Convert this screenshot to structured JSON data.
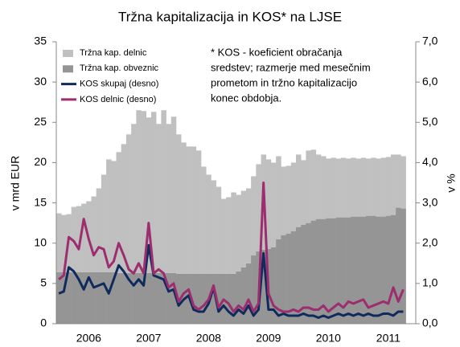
{
  "chart_data": {
    "type": "bar-line",
    "title": "Tržna kapitalizacija in KOS* na LJSE",
    "y_label": "v mrd EUR",
    "y2_label": "v %",
    "annotation": [
      "* KOS - koeficient obračanja",
      "sredstev; razmerje med mesečnim",
      "prometom in tržno kapitalizacijo",
      "konec obdobja."
    ],
    "categories": [
      null,
      null,
      null,
      null,
      null,
      null,
      "2006",
      null,
      null,
      null,
      null,
      null,
      null,
      null,
      null,
      null,
      null,
      null,
      "2007",
      null,
      null,
      null,
      null,
      null,
      null,
      null,
      null,
      null,
      null,
      null,
      "2008",
      null,
      null,
      null,
      null,
      null,
      null,
      null,
      null,
      null,
      null,
      null,
      "2009",
      null,
      null,
      null,
      null,
      null,
      null,
      null,
      null,
      null,
      null,
      null,
      "2010",
      null,
      null,
      null,
      null,
      null,
      null,
      null,
      null,
      null,
      null,
      null,
      "2011",
      null,
      null,
      null,
      null,
      null
    ],
    "series": [
      {
        "name": "Tržna kap. delnic",
        "kind": "bar",
        "color": "#c0c0c0",
        "values": [
          7.3,
          7.1,
          7.2,
          8.1,
          8.2,
          8.5,
          8.8,
          9.4,
          10.4,
          12.1,
          14.0,
          13.8,
          15.0,
          16.0,
          17.2,
          18.5,
          20.2,
          20.1,
          19.3,
          20.0,
          18.5,
          20.2,
          18.5,
          19.4,
          17.3,
          16.3,
          15.8,
          15.8,
          15.3,
          13.3,
          12.3,
          11.6,
          10.8,
          9.3,
          9.5,
          10.1,
          9.5,
          9.5,
          9.3,
          9.8,
          10.8,
          11.8,
          11.1,
          10.5,
          10.3,
          8.5,
          8.4,
          8.5,
          9.0,
          8.0,
          9.0,
          8.8,
          8.0,
          7.8,
          7.4,
          7.5,
          7.3,
          7.4,
          7.3,
          7.3,
          7.2,
          7.3,
          7.1,
          7.2,
          7.2,
          7.3,
          7.3,
          7.5,
          6.6,
          6.5,
          null,
          null
        ]
      },
      {
        "name": "Tržna kap. obveznic",
        "kind": "bar",
        "color": "#959595",
        "values": [
          6.4,
          6.4,
          6.4,
          6.4,
          6.4,
          6.4,
          6.4,
          6.4,
          6.4,
          6.4,
          6.4,
          6.4,
          6.3,
          6.3,
          6.3,
          6.3,
          6.3,
          6.3,
          6.3,
          6.3,
          6.3,
          6.3,
          6.3,
          6.3,
          6.2,
          6.2,
          6.2,
          6.2,
          6.2,
          6.2,
          6.2,
          6.2,
          6.2,
          6.2,
          6.2,
          6.2,
          6.5,
          7.0,
          7.5,
          8.5,
          9.0,
          9.2,
          9.3,
          9.5,
          10.5,
          11.0,
          11.2,
          11.5,
          12.0,
          12.3,
          12.5,
          12.8,
          13.0,
          13.0,
          13.1,
          13.1,
          13.2,
          13.2,
          13.2,
          13.3,
          13.3,
          13.3,
          13.4,
          13.4,
          13.3,
          13.3,
          13.4,
          13.5,
          14.4,
          14.3,
          null,
          null
        ]
      },
      {
        "name": "KOS skupaj (desno)",
        "kind": "line",
        "axis": "y2",
        "color": "#0f2a5c",
        "values": [
          0.75,
          0.8,
          1.4,
          1.3,
          1.1,
          0.85,
          1.15,
          0.9,
          0.95,
          1.0,
          0.75,
          1.1,
          1.45,
          1.3,
          1.1,
          0.95,
          1.1,
          0.95,
          1.95,
          1.2,
          1.15,
          1.1,
          0.8,
          0.85,
          0.45,
          0.6,
          0.7,
          0.35,
          0.3,
          0.3,
          0.5,
          0.9,
          0.3,
          0.45,
          0.3,
          0.2,
          0.35,
          0.25,
          0.45,
          0.2,
          0.35,
          1.75,
          0.35,
          0.35,
          0.2,
          0.25,
          0.2,
          0.2,
          0.2,
          0.25,
          0.2,
          0.2,
          0.15,
          0.2,
          0.15,
          0.2,
          0.25,
          0.2,
          0.25,
          0.2,
          0.25,
          0.2,
          0.25,
          0.2,
          0.2,
          0.25,
          0.25,
          0.2,
          0.3,
          0.3,
          null,
          null
        ]
      },
      {
        "name": "KOS delnic (desno)",
        "kind": "line",
        "axis": "y2",
        "color": "#9c2d6e",
        "values": [
          1.1,
          1.2,
          2.15,
          2.05,
          1.85,
          2.6,
          2.1,
          1.7,
          1.9,
          1.85,
          1.4,
          1.55,
          2.0,
          1.7,
          1.35,
          1.25,
          1.5,
          1.25,
          2.5,
          1.25,
          1.35,
          1.25,
          0.9,
          1.0,
          0.55,
          0.75,
          0.85,
          0.45,
          0.35,
          0.45,
          0.6,
          0.95,
          0.4,
          0.6,
          0.5,
          0.3,
          0.45,
          0.35,
          0.6,
          0.3,
          0.5,
          3.5,
          0.75,
          0.45,
          0.35,
          0.3,
          0.3,
          0.35,
          0.3,
          0.4,
          0.4,
          0.35,
          0.35,
          0.45,
          0.3,
          0.4,
          0.5,
          0.4,
          0.55,
          0.5,
          0.55,
          0.6,
          0.4,
          0.45,
          0.5,
          0.55,
          0.5,
          0.9,
          0.55,
          0.85,
          null,
          null
        ]
      }
    ],
    "ylim": [
      0,
      35
    ],
    "yticks": [
      0,
      5,
      10,
      15,
      20,
      25,
      30,
      35
    ],
    "y2lim": [
      0,
      7
    ],
    "y2ticks": [
      {
        "value": 0,
        "label": "0,0"
      },
      {
        "value": 1,
        "label": "1,0"
      },
      {
        "value": 2,
        "label": "2,0"
      },
      {
        "value": 3,
        "label": "3,0"
      },
      {
        "value": 4,
        "label": "4,0"
      },
      {
        "value": 5,
        "label": "5,0"
      },
      {
        "value": 6,
        "label": "6,0"
      },
      {
        "value": 7,
        "label": "7,0"
      }
    ],
    "legend": "top-left",
    "grid": false
  }
}
